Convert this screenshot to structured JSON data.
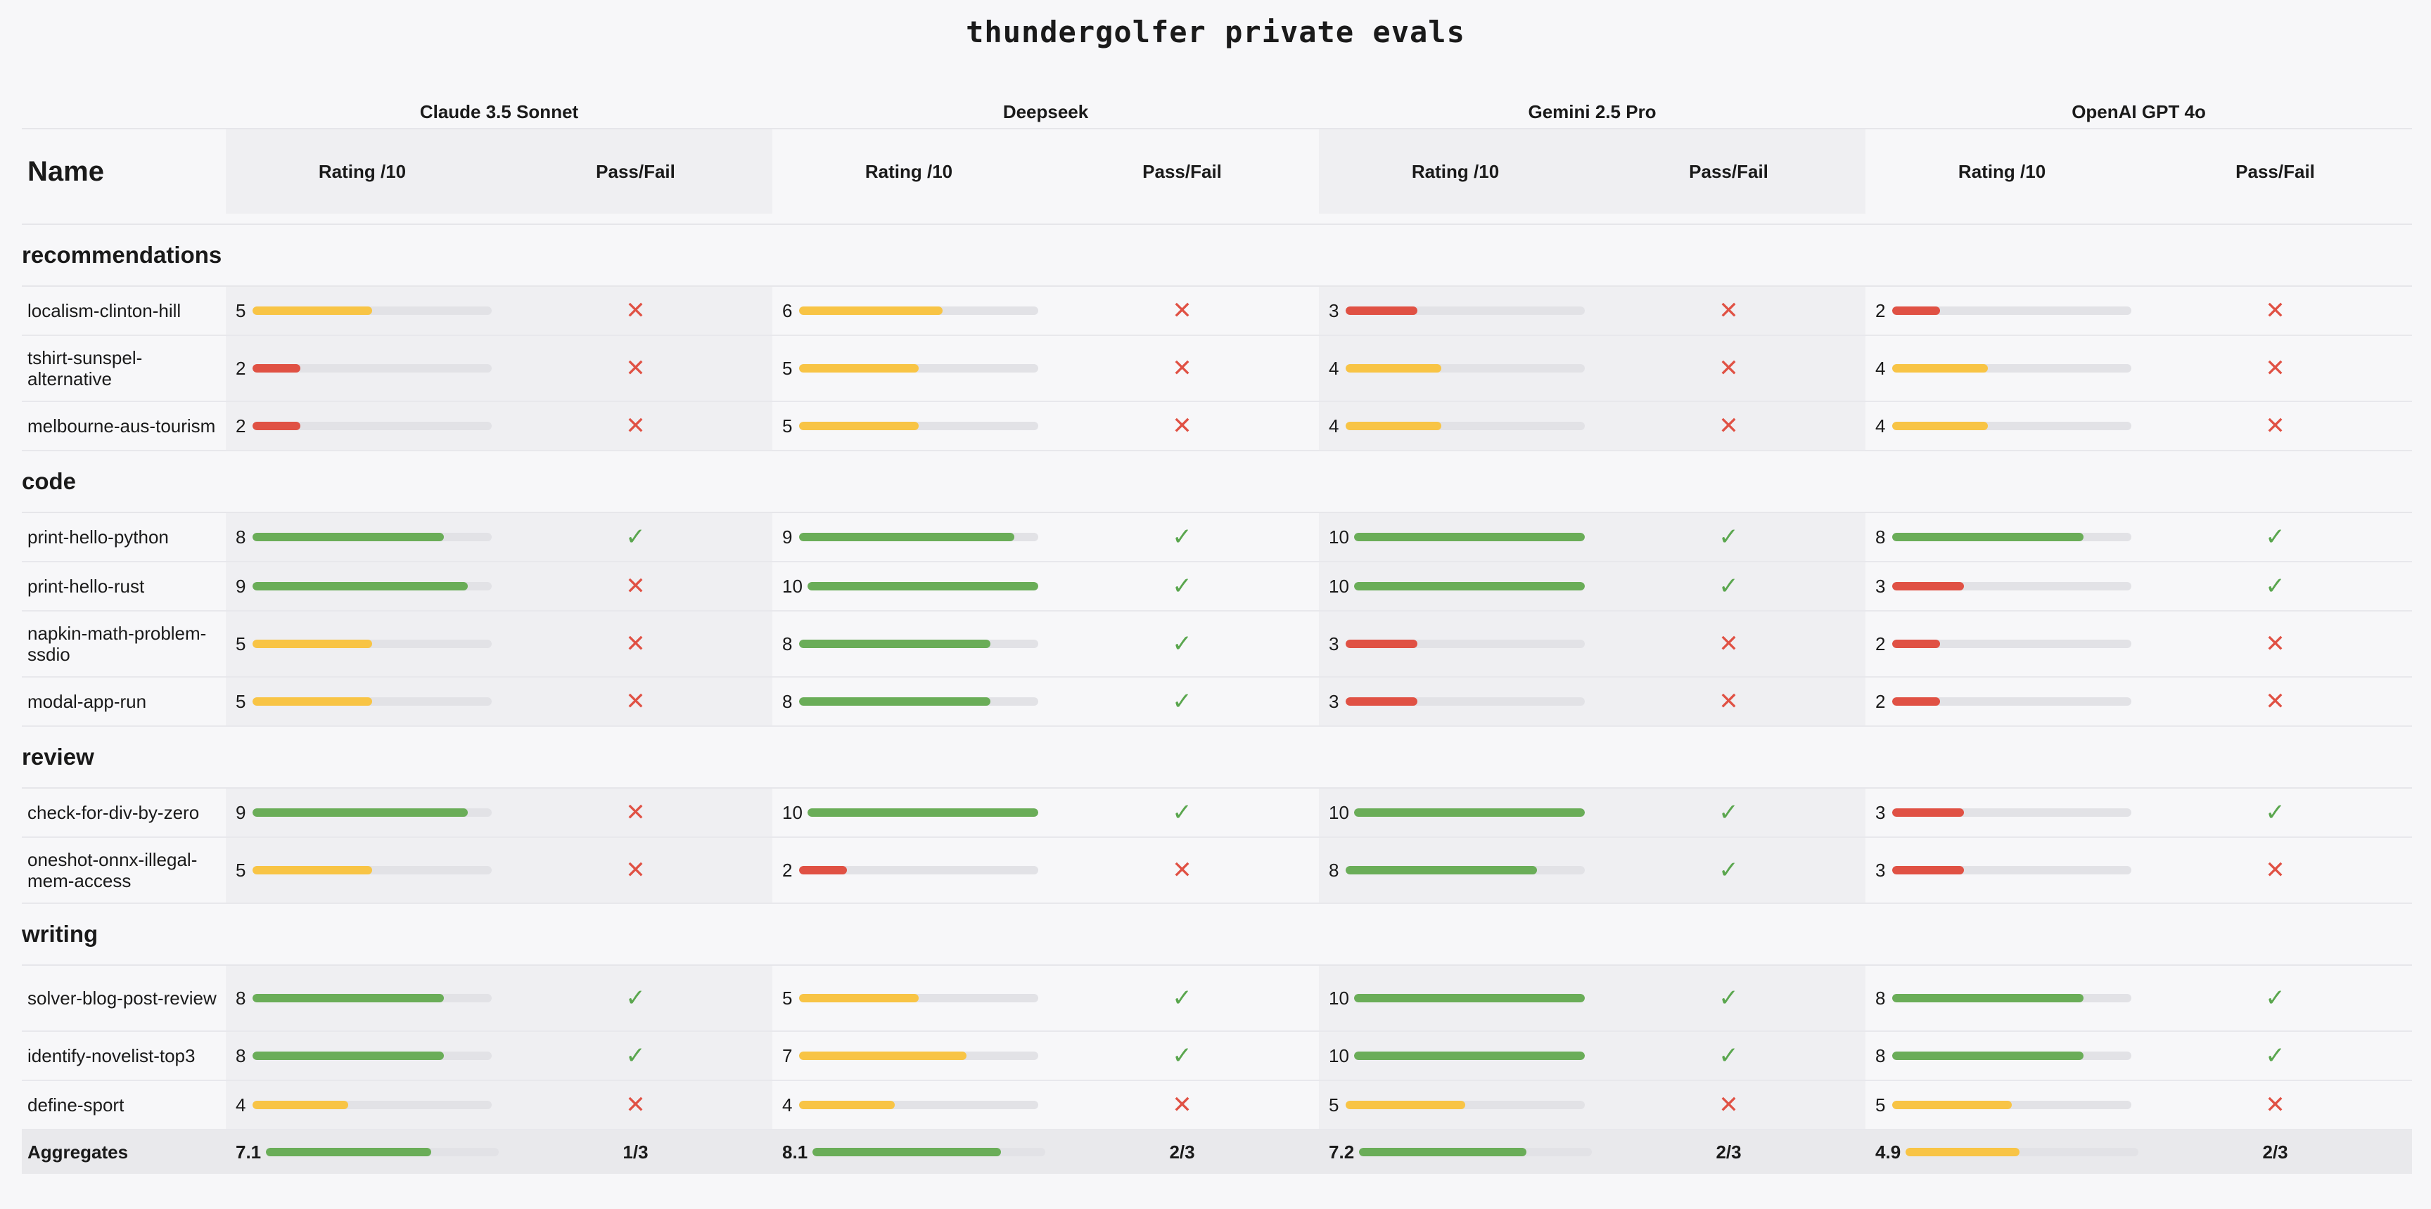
{
  "title": "thundergolfer private evals",
  "colors": {
    "red": "#e05144",
    "yellow": "#f8c445",
    "green": "#6aad58",
    "track": "#e2e2e6"
  },
  "icons": {
    "pass": "check-icon",
    "fail": "cross-icon"
  },
  "header": {
    "name_label": "Name",
    "rating_label": "Rating /10",
    "pass_label": "Pass/Fail",
    "models": [
      "Claude 3.5 Sonnet",
      "Deepseek",
      "Gemini 2.5 Pro",
      "OpenAI GPT 4o"
    ]
  },
  "categories": [
    {
      "name": "recommendations",
      "rows": [
        {
          "name": "localism-clinton-hill",
          "results": [
            [
              5,
              "fail"
            ],
            [
              6,
              "fail"
            ],
            [
              3,
              "fail"
            ],
            [
              2,
              "fail"
            ]
          ]
        },
        {
          "name": "tshirt-sunspel-alternative",
          "results": [
            [
              2,
              "fail"
            ],
            [
              5,
              "fail"
            ],
            [
              4,
              "fail"
            ],
            [
              4,
              "fail"
            ]
          ]
        },
        {
          "name": "melbourne-aus-tourism",
          "results": [
            [
              2,
              "fail"
            ],
            [
              5,
              "fail"
            ],
            [
              4,
              "fail"
            ],
            [
              4,
              "fail"
            ]
          ]
        }
      ]
    },
    {
      "name": "code",
      "rows": [
        {
          "name": "print-hello-python",
          "results": [
            [
              8,
              "pass"
            ],
            [
              9,
              "pass"
            ],
            [
              10,
              "pass"
            ],
            [
              8,
              "pass"
            ]
          ]
        },
        {
          "name": "print-hello-rust",
          "results": [
            [
              9,
              "fail"
            ],
            [
              10,
              "pass"
            ],
            [
              10,
              "pass"
            ],
            [
              3,
              "pass"
            ]
          ]
        },
        {
          "name": "napkin-math-problem-ssdio",
          "results": [
            [
              5,
              "fail"
            ],
            [
              8,
              "pass"
            ],
            [
              3,
              "fail"
            ],
            [
              2,
              "fail"
            ]
          ]
        },
        {
          "name": "modal-app-run",
          "results": [
            [
              5,
              "fail"
            ],
            [
              8,
              "pass"
            ],
            [
              3,
              "fail"
            ],
            [
              2,
              "fail"
            ]
          ]
        }
      ]
    },
    {
      "name": "review",
      "rows": [
        {
          "name": "check-for-div-by-zero",
          "results": [
            [
              9,
              "fail"
            ],
            [
              10,
              "pass"
            ],
            [
              10,
              "pass"
            ],
            [
              3,
              "pass"
            ]
          ]
        },
        {
          "name": "oneshot-onnx-illegal-mem-access",
          "results": [
            [
              5,
              "fail"
            ],
            [
              2,
              "fail"
            ],
            [
              8,
              "pass"
            ],
            [
              3,
              "fail"
            ]
          ]
        }
      ]
    },
    {
      "name": "writing",
      "rows": [
        {
          "name": "solver-blog-post-review",
          "results": [
            [
              8,
              "pass"
            ],
            [
              5,
              "pass"
            ],
            [
              10,
              "pass"
            ],
            [
              8,
              "pass"
            ]
          ]
        },
        {
          "name": "identify-novelist-top3",
          "results": [
            [
              8,
              "pass"
            ],
            [
              7,
              "pass"
            ],
            [
              10,
              "pass"
            ],
            [
              8,
              "pass"
            ]
          ]
        },
        {
          "name": "define-sport",
          "results": [
            [
              4,
              "fail"
            ],
            [
              4,
              "fail"
            ],
            [
              5,
              "fail"
            ],
            [
              5,
              "fail"
            ]
          ]
        }
      ]
    }
  ],
  "aggregates": {
    "label": "Aggregates",
    "values": [
      {
        "rating": "7.1",
        "pass": "1/3"
      },
      {
        "rating": "8.1",
        "pass": "2/3"
      },
      {
        "rating": "7.2",
        "pass": "2/3"
      },
      {
        "rating": "4.9",
        "pass": "2/3"
      }
    ]
  }
}
